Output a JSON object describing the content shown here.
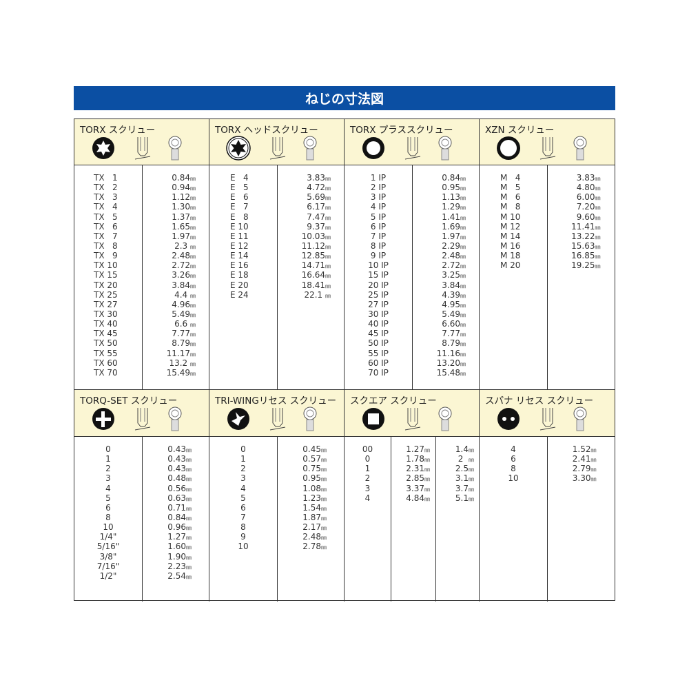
{
  "title": "ねじの寸法図",
  "panels": [
    {
      "title": "TORX スクリュー",
      "icons": [
        "torx-tip-icon",
        "torx-bit-side-icon",
        "torx-screw-head-icon"
      ],
      "columns": [
        [
          "TX   1",
          "TX   2",
          "TX   3",
          "TX   4",
          "TX   5",
          "TX   6",
          "TX   7",
          "TX   8",
          "TX   9",
          "TX 10",
          "TX 15",
          "TX 20",
          "TX 25",
          "TX 27",
          "TX 30",
          "TX 40",
          "TX 45",
          "TX 50",
          "TX 55",
          "TX 60",
          "TX 70"
        ],
        [
          "0.84",
          "0.94",
          "1.12",
          "1.30",
          "1.37",
          "1.65",
          "1.97",
          "2.3 ",
          "2.48",
          "2.72",
          "3.26",
          "3.84",
          "4.4 ",
          "4.96",
          "5.49",
          "6.6 ",
          "7.77",
          "8.79",
          "11.17",
          "13.2 ",
          "15.49"
        ]
      ]
    },
    {
      "title": "TORX ヘッドスクリュー",
      "icons": [
        "torx-head-socket-icon",
        "torx-head-bit-side-icon",
        "torx-head-screw-icon"
      ],
      "columns": [
        [
          "E   4",
          "E   5",
          "E   6",
          "E   7",
          "E   8",
          "E 10",
          "E 11",
          "E 12",
          "E 14",
          "E 16",
          "E 18",
          "E 20",
          "E 24"
        ],
        [
          "3.83",
          "4.72",
          "5.69",
          "6.17",
          "7.47",
          "9.37",
          "10.03",
          "11.12",
          "12.85",
          "14.71",
          "16.64",
          "18.41",
          "22.1 "
        ]
      ]
    },
    {
      "title": "TORX プラススクリュー",
      "icons": [
        "torx-plus-tip-icon",
        "torx-plus-bit-side-icon",
        "torx-plus-screw-head-icon"
      ],
      "columns": [
        [
          "1 IP",
          "2 IP",
          "3 IP",
          "4 IP",
          "5 IP",
          "6 IP",
          "7 IP",
          "8 IP",
          "9 IP",
          "10 IP",
          "15 IP",
          "20 IP",
          "25 IP",
          "27 IP",
          "30 IP",
          "40 IP",
          "45 IP",
          "50 IP",
          "55 IP",
          "60 IP",
          "70 IP"
        ],
        [
          "0.84",
          "0.95",
          "1.13",
          "1.29",
          "1.41",
          "1.69",
          "1.97",
          "2.29",
          "2.48",
          "2.72",
          "3.25",
          "3.84",
          "4.39",
          "4.95",
          "5.49",
          "6.60",
          "7.77",
          "8.79",
          "11.16",
          "13.20",
          "15.48"
        ]
      ]
    },
    {
      "title": "XZN スクリュー",
      "icons": [
        "xzn-tip-icon",
        "xzn-bit-side-icon",
        "xzn-screw-head-icon"
      ],
      "columns": [
        [
          "M   4",
          "M   5",
          "M   6",
          "M   8",
          "M 10",
          "M 12",
          "M 14",
          "M 16",
          "M 18",
          "M 20"
        ],
        [
          "3.83",
          "4.80",
          "6.00",
          "7.20",
          "9.60",
          "11.41",
          "13.22",
          "15.63",
          "16.85",
          "19.25"
        ]
      ]
    },
    {
      "title": "TORQ-SET スクリュー",
      "icons": [
        "torq-set-tip-icon",
        "torq-set-head-top-icon",
        "torq-set-screw-icon"
      ],
      "columns": [
        [
          "0",
          "1",
          "2",
          "3",
          "4",
          "5",
          "6",
          "8",
          "10",
          "1/4\"",
          "5/16\"",
          "3/8\"",
          "7/16\"",
          "1/2\""
        ],
        [
          "0.43",
          "0.43",
          "0.43",
          "0.48",
          "0.56",
          "0.63",
          "0.71",
          "0.84",
          "0.96",
          "1.27",
          "1.60",
          "1.90",
          "2.23",
          "2.54"
        ]
      ]
    },
    {
      "title": "TRI-WINGリセス スクリュー",
      "icons": [
        "tri-wing-tip-icon",
        "tri-wing-head-top-icon",
        "tri-wing-screw-icon"
      ],
      "columns": [
        [
          "0",
          "1",
          "2",
          "3",
          "4",
          "5",
          "6",
          "7",
          "8",
          "9",
          "10"
        ],
        [
          "0.45",
          "0.57",
          "0.75",
          "0.95",
          "1.08",
          "1.23",
          "1.54",
          "1.87",
          "2.17",
          "2.48",
          "2.78"
        ]
      ]
    },
    {
      "title": "スクエア スクリュー",
      "icons": [
        "square-tip-icon",
        "square-bit-side-icon",
        "square-screw-head-icon"
      ],
      "columns": [
        [
          "00",
          "0",
          "1",
          "2",
          "3",
          "4"
        ],
        [
          "1.27",
          "1.78",
          "2.31",
          "2.85",
          "3.37",
          "4.84"
        ],
        [
          "1.4",
          "2  ",
          "2.5",
          "3.1",
          "3.7",
          "5.1"
        ]
      ]
    },
    {
      "title": "スパナ リセス スクリュー",
      "icons": [
        "spanner-tip-icon",
        "spanner-bit-side-icon",
        "spanner-screw-head-icon"
      ],
      "columns": [
        [
          "4",
          "6",
          "8",
          "10"
        ],
        [
          "1.52",
          "2.41",
          "2.79",
          "3.30"
        ]
      ]
    }
  ],
  "unit": "㎜"
}
